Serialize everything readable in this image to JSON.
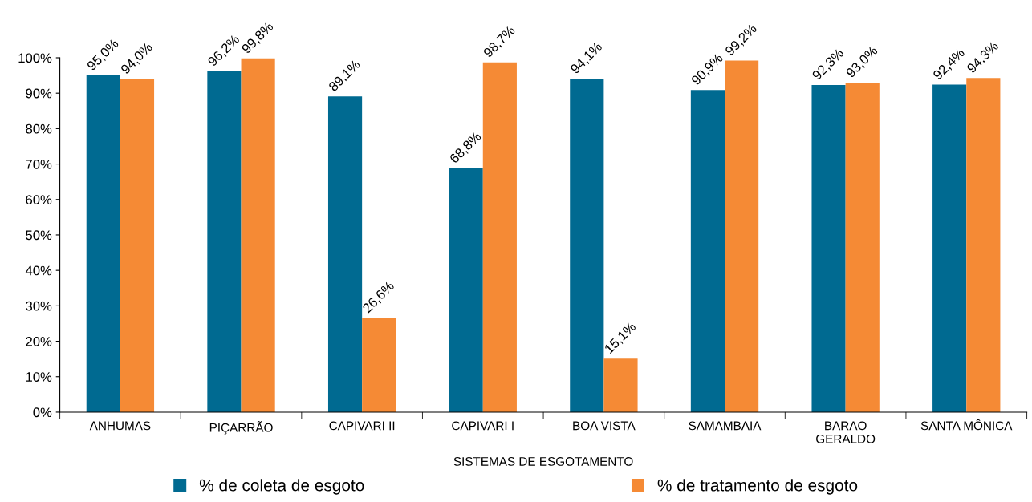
{
  "chart_data": {
    "type": "bar",
    "xlabel": "SISTEMAS DE ESGOTAMENTO",
    "categories": [
      "ANHUMAS",
      "PIÇARRÃO",
      "CAPIVARI II",
      "CAPIVARI I",
      "BOA VISTA",
      "SAMAMBAIA",
      "BARAO\nGERALDO",
      "SANTA MÔNICA"
    ],
    "series": [
      {
        "name": "% de coleta de esgoto",
        "color": "#006a91",
        "values": [
          95.0,
          96.2,
          89.1,
          68.8,
          94.1,
          90.9,
          92.3,
          92.4
        ],
        "value_labels": [
          "95,0%",
          "96,2%",
          "89,1%",
          "68,8%",
          "94,1%",
          "90,9%",
          "92,3%",
          "92,4%"
        ]
      },
      {
        "name": "% de tratamento de esgoto",
        "color": "#f58a35",
        "values": [
          94.0,
          99.8,
          26.6,
          98.7,
          15.1,
          99.2,
          93.0,
          94.3
        ],
        "value_labels": [
          "94,0%",
          "99,8%",
          "26,6%",
          "98,7%",
          "15,1%",
          "99,2%",
          "93,0%",
          "94,3%"
        ]
      }
    ],
    "ylim": [
      0,
      100
    ],
    "yticks": [
      {
        "value": 0,
        "label": "0%"
      },
      {
        "value": 10,
        "label": "10%"
      },
      {
        "value": 20,
        "label": "20%"
      },
      {
        "value": 30,
        "label": "30%"
      },
      {
        "value": 40,
        "label": "40%"
      },
      {
        "value": 50,
        "label": "50%"
      },
      {
        "value": 60,
        "label": "60%"
      },
      {
        "value": 70,
        "label": "70%"
      },
      {
        "value": 80,
        "label": "80%"
      },
      {
        "value": 90,
        "label": "90%"
      },
      {
        "value": 100,
        "label": "100%"
      }
    ],
    "grid": false,
    "legend": "bottom"
  }
}
